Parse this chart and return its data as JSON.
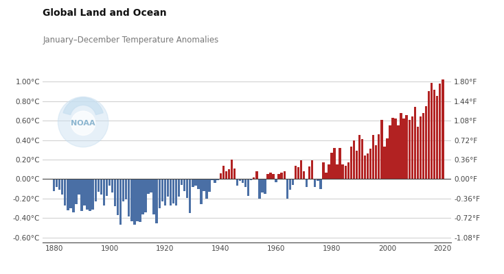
{
  "title": "Global Land and Ocean",
  "subtitle": "January–December Temperature Anomalies",
  "ylim_c": [
    -0.65,
    1.05
  ],
  "yticks_c": [
    -0.6,
    -0.4,
    -0.2,
    0.0,
    0.2,
    0.4,
    0.6,
    0.8,
    1.0
  ],
  "yticks_f": [
    -1.08,
    -0.72,
    -0.36,
    0.0,
    0.36,
    0.72,
    1.08,
    1.44,
    1.8
  ],
  "xticks": [
    1880,
    1900,
    1920,
    1940,
    1960,
    1980,
    2000,
    2020
  ],
  "years": [
    1880,
    1881,
    1882,
    1883,
    1884,
    1885,
    1886,
    1887,
    1888,
    1889,
    1890,
    1891,
    1892,
    1893,
    1894,
    1895,
    1896,
    1897,
    1898,
    1899,
    1900,
    1901,
    1902,
    1903,
    1904,
    1905,
    1906,
    1907,
    1908,
    1909,
    1910,
    1911,
    1912,
    1913,
    1914,
    1915,
    1916,
    1917,
    1918,
    1919,
    1920,
    1921,
    1922,
    1923,
    1924,
    1925,
    1926,
    1927,
    1928,
    1929,
    1930,
    1931,
    1932,
    1933,
    1934,
    1935,
    1936,
    1937,
    1938,
    1939,
    1940,
    1941,
    1942,
    1943,
    1944,
    1945,
    1946,
    1947,
    1948,
    1949,
    1950,
    1951,
    1952,
    1953,
    1954,
    1955,
    1956,
    1957,
    1958,
    1959,
    1960,
    1961,
    1962,
    1963,
    1964,
    1965,
    1966,
    1967,
    1968,
    1969,
    1970,
    1971,
    1972,
    1973,
    1974,
    1975,
    1976,
    1977,
    1978,
    1979,
    1980,
    1981,
    1982,
    1983,
    1984,
    1985,
    1986,
    1987,
    1988,
    1989,
    1990,
    1991,
    1992,
    1993,
    1994,
    1995,
    1996,
    1997,
    1998,
    1999,
    2000,
    2001,
    2002,
    2003,
    2004,
    2005,
    2006,
    2007,
    2008,
    2009,
    2010,
    2011,
    2012,
    2013,
    2014,
    2015,
    2016,
    2017,
    2018,
    2019,
    2020
  ],
  "anomalies": [
    -0.12,
    -0.08,
    -0.11,
    -0.16,
    -0.27,
    -0.32,
    -0.3,
    -0.34,
    -0.26,
    -0.16,
    -0.33,
    -0.27,
    -0.31,
    -0.33,
    -0.31,
    -0.23,
    -0.13,
    -0.16,
    -0.27,
    -0.17,
    -0.07,
    -0.14,
    -0.28,
    -0.37,
    -0.47,
    -0.23,
    -0.21,
    -0.38,
    -0.43,
    -0.47,
    -0.43,
    -0.44,
    -0.36,
    -0.34,
    -0.15,
    -0.14,
    -0.36,
    -0.45,
    -0.3,
    -0.23,
    -0.27,
    -0.18,
    -0.27,
    -0.25,
    -0.27,
    -0.18,
    -0.06,
    -0.12,
    -0.19,
    -0.35,
    -0.08,
    -0.07,
    -0.1,
    -0.26,
    -0.12,
    -0.2,
    -0.13,
    -0.01,
    -0.04,
    -0.01,
    0.06,
    0.14,
    0.08,
    0.1,
    0.2,
    0.11,
    -0.07,
    -0.02,
    -0.04,
    -0.08,
    -0.17,
    -0.01,
    0.02,
    0.08,
    -0.2,
    -0.14,
    -0.15,
    0.05,
    0.07,
    0.05,
    -0.03,
    0.05,
    0.07,
    0.08,
    -0.2,
    -0.11,
    -0.06,
    0.14,
    0.12,
    0.19,
    0.08,
    -0.08,
    0.13,
    0.19,
    -0.08,
    -0.02,
    -0.1,
    0.17,
    0.07,
    0.15,
    0.27,
    0.32,
    0.15,
    0.32,
    0.15,
    0.14,
    0.17,
    0.33,
    0.4,
    0.29,
    0.45,
    0.41,
    0.24,
    0.26,
    0.31,
    0.45,
    0.35,
    0.46,
    0.61,
    0.33,
    0.42,
    0.55,
    0.63,
    0.62,
    0.55,
    0.68,
    0.62,
    0.66,
    0.61,
    0.64,
    0.74,
    0.54,
    0.64,
    0.68,
    0.75,
    0.9,
    0.99,
    0.92,
    0.85,
    0.98,
    1.02
  ],
  "color_positive": "#b22222",
  "color_negative": "#4a6fa5",
  "background_color": "#ffffff",
  "grid_color": "#cccccc",
  "axis_color": "#444444",
  "title_color": "#111111",
  "subtitle_color": "#777777",
  "noaa_logo_color": "#c8dff0",
  "noaa_text_color": "#7aaac8"
}
